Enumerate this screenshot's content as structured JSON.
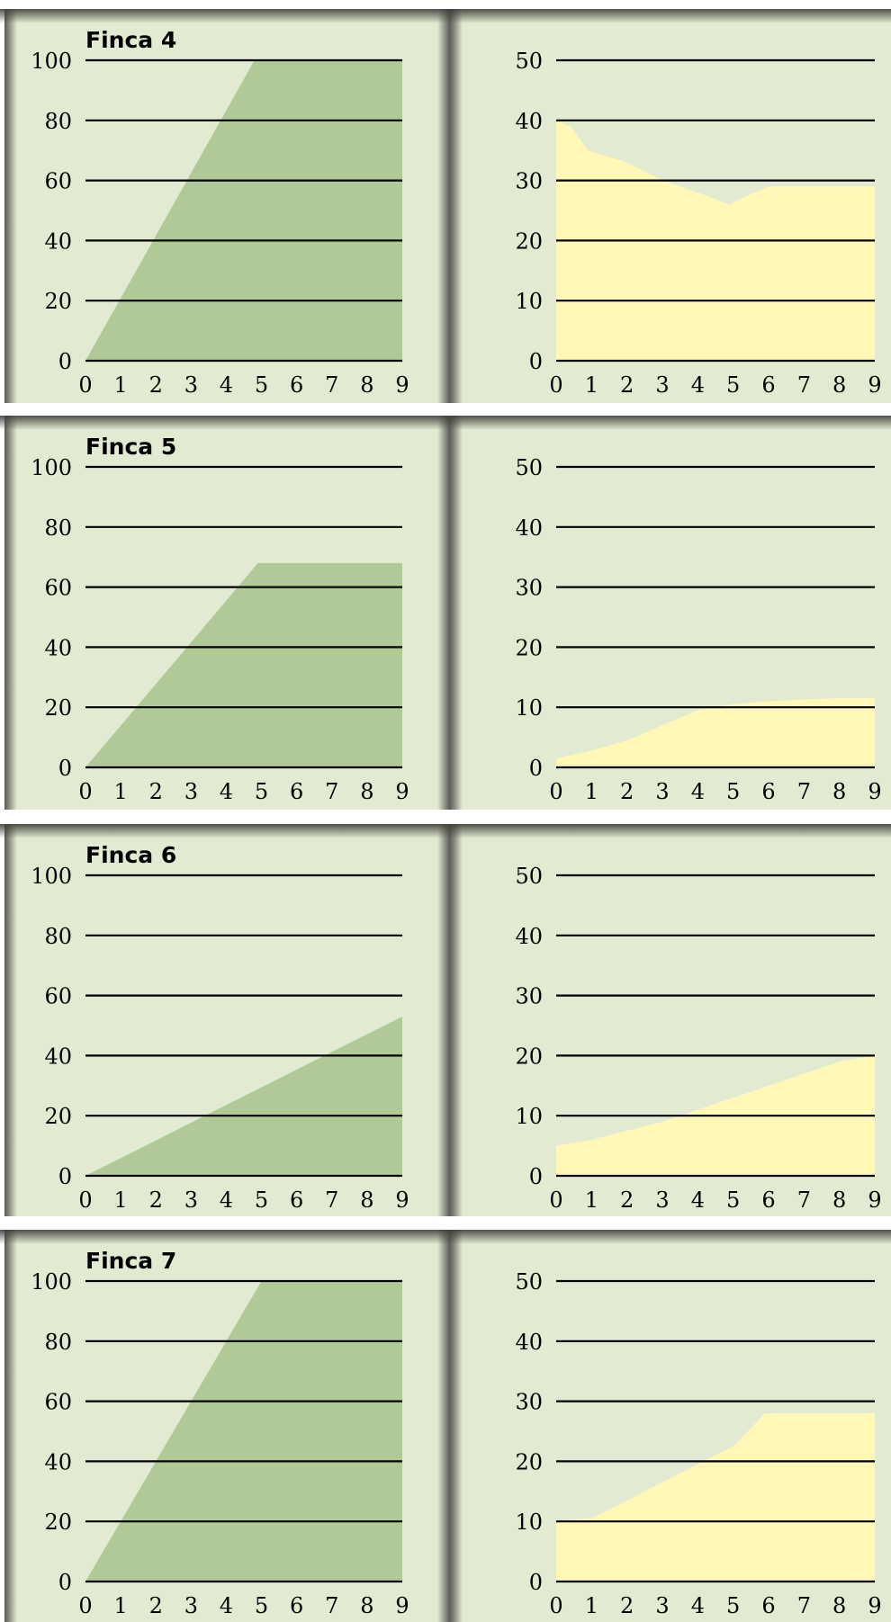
{
  "colors": {
    "panel_background": "#e2ebd2",
    "left_fill": "#b1c897",
    "right_fill": "#fff8b6",
    "gridline": "#000000",
    "frame_shadow": "#4a4a44"
  },
  "chart_data": [
    {
      "title": "Finca 4",
      "left": {
        "type": "area",
        "x": [
          0,
          4.8,
          9
        ],
        "values": [
          0,
          100,
          100
        ],
        "ylim": [
          0,
          100
        ],
        "yticks": [
          "0",
          "20",
          "40",
          "60",
          "80",
          "100"
        ],
        "xticks": [
          "0",
          "1",
          "2",
          "3",
          "4",
          "5",
          "6",
          "7",
          "8",
          "9"
        ],
        "grid": true
      },
      "right": {
        "type": "area",
        "x": [
          0,
          0.4,
          0.9,
          2,
          3,
          4,
          4.9,
          5.4,
          6,
          7,
          8,
          9
        ],
        "values": [
          40,
          39,
          35,
          33,
          30,
          28,
          26,
          27.5,
          29,
          29,
          29,
          29
        ],
        "ylim": [
          0,
          50
        ],
        "yticks": [
          "0",
          "10",
          "20",
          "30",
          "40",
          "50"
        ],
        "xticks": [
          "0",
          "1",
          "2",
          "3",
          "4",
          "5",
          "6",
          "7",
          "8",
          "9"
        ],
        "grid": true
      }
    },
    {
      "title": "Finca 5",
      "left": {
        "type": "area",
        "x": [
          0,
          4.9,
          9
        ],
        "values": [
          0,
          68,
          68
        ],
        "ylim": [
          0,
          100
        ],
        "yticks": [
          "0",
          "20",
          "40",
          "60",
          "80",
          "100"
        ],
        "xticks": [
          "0",
          "1",
          "2",
          "3",
          "4",
          "5",
          "6",
          "7",
          "8",
          "9"
        ],
        "grid": true
      },
      "right": {
        "type": "area",
        "x": [
          0,
          1,
          2,
          3,
          4,
          5,
          6,
          7,
          8,
          9
        ],
        "values": [
          1.5,
          2.8,
          4.5,
          7,
          9.5,
          10.5,
          11,
          11.3,
          11.5,
          11.5
        ],
        "ylim": [
          0,
          50
        ],
        "yticks": [
          "0",
          "10",
          "20",
          "30",
          "40",
          "50"
        ],
        "xticks": [
          "0",
          "1",
          "2",
          "3",
          "4",
          "5",
          "6",
          "7",
          "8",
          "9"
        ],
        "grid": true
      }
    },
    {
      "title": "Finca 6",
      "left": {
        "type": "area",
        "x": [
          0,
          9
        ],
        "values": [
          0,
          53
        ],
        "ylim": [
          0,
          100
        ],
        "yticks": [
          "0",
          "20",
          "40",
          "60",
          "80",
          "100"
        ],
        "xticks": [
          "0",
          "1",
          "2",
          "3",
          "4",
          "5",
          "6",
          "7",
          "8",
          "9"
        ],
        "grid": true
      },
      "right": {
        "type": "area",
        "x": [
          0,
          1,
          2,
          3,
          4,
          5,
          6,
          7,
          8,
          9
        ],
        "values": [
          5,
          6,
          7.5,
          9,
          11,
          13,
          15,
          17,
          19,
          20
        ],
        "ylim": [
          0,
          50
        ],
        "yticks": [
          "0",
          "10",
          "20",
          "30",
          "40",
          "50"
        ],
        "xticks": [
          "0",
          "1",
          "2",
          "3",
          "4",
          "5",
          "6",
          "7",
          "8",
          "9"
        ],
        "grid": true
      }
    },
    {
      "title": "Finca 7",
      "left": {
        "type": "area",
        "x": [
          0,
          5,
          9
        ],
        "values": [
          0,
          100,
          100
        ],
        "ylim": [
          0,
          100
        ],
        "yticks": [
          "0",
          "20",
          "40",
          "60",
          "80",
          "100"
        ],
        "xticks": [
          "0",
          "1",
          "2",
          "3",
          "4",
          "5",
          "6",
          "7",
          "8",
          "9"
        ],
        "grid": true
      },
      "right": {
        "type": "area",
        "x": [
          0,
          1,
          2,
          3,
          4,
          5,
          5.9,
          7,
          8,
          9
        ],
        "values": [
          10,
          10.5,
          13.5,
          16.5,
          19.5,
          22.5,
          28,
          28,
          28,
          28
        ],
        "ylim": [
          0,
          50
        ],
        "yticks": [
          "0",
          "10",
          "20",
          "30",
          "40",
          "50"
        ],
        "xticks": [
          "0",
          "1",
          "2",
          "3",
          "4",
          "5",
          "6",
          "7",
          "8",
          "9"
        ],
        "grid": true
      }
    }
  ]
}
